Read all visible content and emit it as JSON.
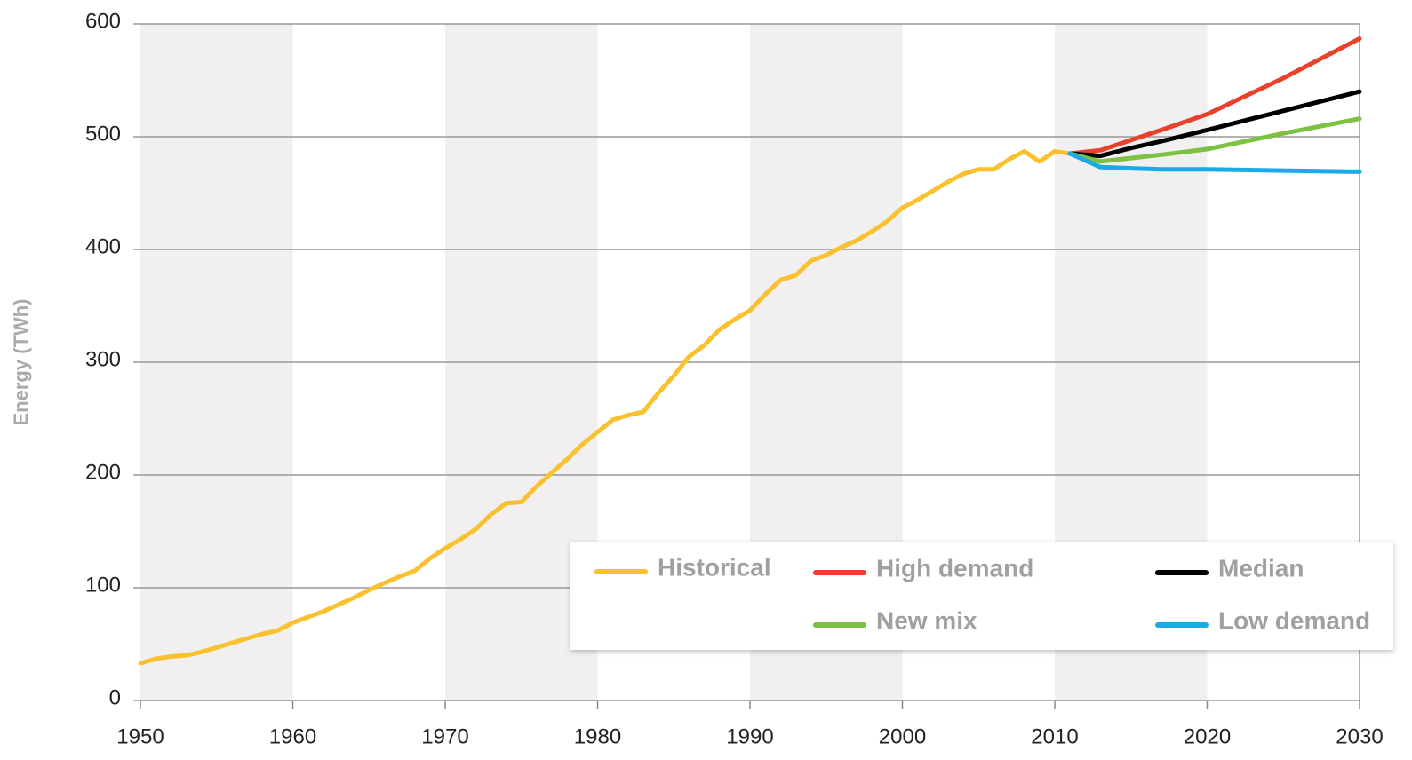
{
  "chart_data": {
    "type": "line",
    "y_label": "Energy (TWh)",
    "xlim": [
      1950,
      2030
    ],
    "xticks": [
      1950,
      1960,
      1970,
      1980,
      1990,
      2000,
      2010,
      2020,
      2030
    ],
    "ylim": [
      0,
      600
    ],
    "yticks": [
      0,
      100,
      200,
      300,
      400,
      500,
      600
    ],
    "grid": true,
    "series": [
      {
        "name": "Historical",
        "color": "#f9c12e",
        "x": [
          1950,
          1951,
          1952,
          1953,
          1954,
          1955,
          1956,
          1957,
          1958,
          1959,
          1960,
          1961,
          1962,
          1963,
          1964,
          1965,
          1966,
          1967,
          1968,
          1969,
          1970,
          1971,
          1972,
          1973,
          1974,
          1975,
          1976,
          1977,
          1978,
          1979,
          1980,
          1981,
          1982,
          1983,
          1984,
          1985,
          1986,
          1987,
          1988,
          1989,
          1990,
          1991,
          1992,
          1993,
          1994,
          1995,
          1996,
          1997,
          1998,
          1999,
          2000,
          2001,
          2002,
          2003,
          2004,
          2005,
          2006,
          2007,
          2008,
          2009,
          2010,
          2011
        ],
        "values": [
          33,
          37,
          39,
          40,
          43,
          47,
          51,
          55,
          59,
          62,
          69,
          74,
          79,
          85,
          91,
          98,
          104,
          110,
          115,
          126,
          135,
          143,
          152,
          165,
          175,
          176,
          190,
          202,
          214,
          227,
          238,
          249,
          253,
          256,
          273,
          288,
          305,
          315,
          329,
          338,
          346,
          360,
          373,
          377,
          390,
          395,
          402,
          408,
          416,
          425,
          437,
          444,
          452,
          460,
          467,
          471,
          471,
          480,
          487,
          478,
          487,
          485
        ]
      },
      {
        "name": "High demand",
        "color": "#e8412c",
        "x": [
          2011,
          2013,
          2015,
          2017,
          2020,
          2025,
          2030
        ],
        "values": [
          485,
          488,
          497,
          506,
          520,
          552,
          587
        ]
      },
      {
        "name": "Median",
        "color": "#000000",
        "x": [
          2011,
          2013,
          2015,
          2017,
          2020,
          2025,
          2030
        ],
        "values": [
          485,
          483,
          490,
          496,
          506,
          523,
          540
        ]
      },
      {
        "name": "New mix",
        "color": "#7dc142",
        "x": [
          2011,
          2013,
          2015,
          2017,
          2020,
          2025,
          2030
        ],
        "values": [
          485,
          478,
          481,
          484,
          489,
          503,
          516
        ]
      },
      {
        "name": "Low demand",
        "color": "#1aabe6",
        "x": [
          2011,
          2013,
          2015,
          2017,
          2020,
          2025,
          2030
        ],
        "values": [
          485,
          473,
          472,
          471,
          471,
          470,
          469
        ]
      }
    ]
  }
}
